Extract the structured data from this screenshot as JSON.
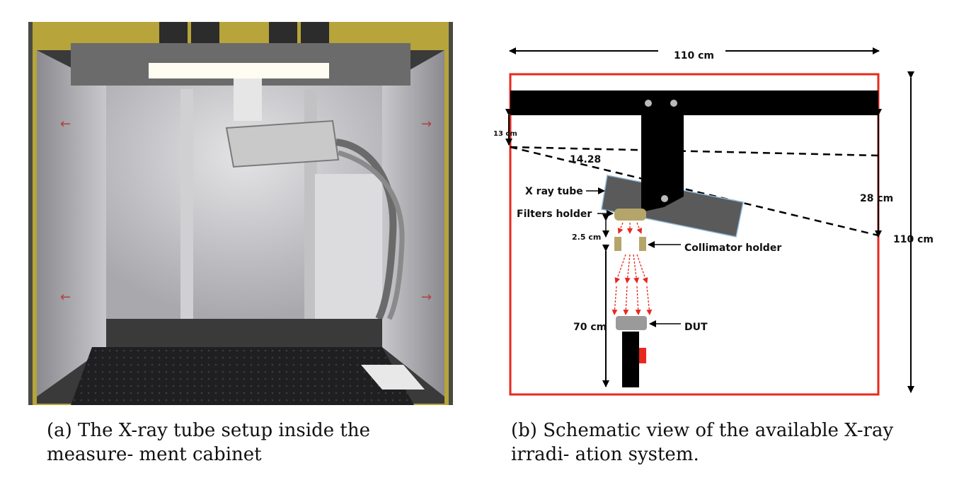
{
  "panel_a": {
    "caption": "(a) The X-ray tube setup inside the measure- ment cabinet"
  },
  "panel_b": {
    "caption": "(b) Schematic view of the available X-ray irradi- ation system.",
    "labels": {
      "width_top": "110 cm",
      "height_right": "110 cm",
      "offset_13": "13 cm",
      "angle": "14.28",
      "xray_tube": "X ray tube",
      "filters_holder": "Filters holder",
      "gap_25": "2.5 cm",
      "collimator_holder": "Collimator holder",
      "dist_70": "70 cm",
      "dut": "DUT",
      "dist_28": "28 cm"
    },
    "colors": {
      "frame": "#e8281e",
      "beam": "#ffffff",
      "tube": "#5a5a5a",
      "holder": "#b5a56a",
      "dut": "#9a9a9a",
      "mark": "#e8281e"
    }
  }
}
